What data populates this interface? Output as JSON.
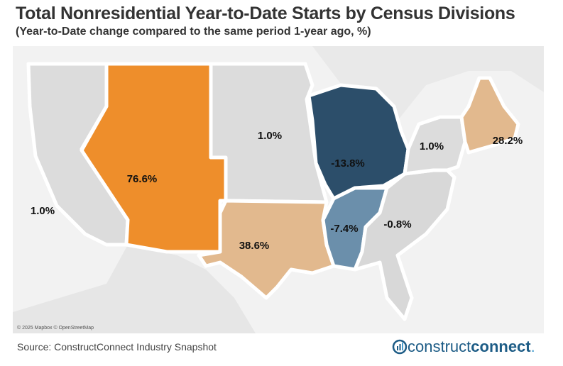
{
  "title": "Total Nonresidential Year-to-Date Starts by Census Divisions",
  "subtitle": "(Year-to-Date change compared to the same period 1-year ago, %)",
  "attribution": "© 2025 Mapbox © OpenStreetMap",
  "source": "Source: ConstructConnect Industry Snapshot",
  "logo": {
    "text_light": "construct",
    "text_bold": "connect",
    "suffix": "."
  },
  "colors": {
    "high_growth": "#ee8e2b",
    "moderate_growth": "#e2b98e",
    "flat": "#dcdcdc",
    "moderate_decline": "#6b8fab",
    "strong_decline": "#2c4e6a"
  },
  "divisions": [
    {
      "name": "Pacific",
      "value": "1.0%",
      "color": "#dcdcdc"
    },
    {
      "name": "Mountain",
      "value": "76.6%",
      "color": "#ee8e2b"
    },
    {
      "name": "West North Central",
      "value": "1.0%",
      "color": "#dcdcdc"
    },
    {
      "name": "West South Central",
      "value": "38.6%",
      "color": "#e2b98e"
    },
    {
      "name": "East North Central",
      "value": "-13.8%",
      "color": "#2c4e6a"
    },
    {
      "name": "East South Central",
      "value": "-7.4%",
      "color": "#6b8fab"
    },
    {
      "name": "South Atlantic",
      "value": "-0.8%",
      "color": "#d8d8d8"
    },
    {
      "name": "Middle Atlantic",
      "value": "1.0%",
      "color": "#dcdcdc"
    },
    {
      "name": "New England",
      "value": "28.2%",
      "color": "#e2b98e"
    }
  ]
}
